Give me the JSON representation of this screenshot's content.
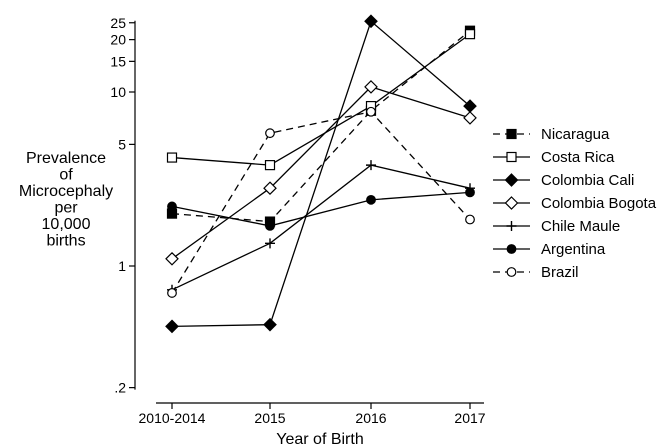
{
  "chart_data": {
    "type": "line",
    "xlabel": "Year of Birth",
    "ylabel_lines": [
      "Prevalence",
      "of",
      "Microcephaly",
      "per",
      "10,000",
      "births"
    ],
    "y_scale": "log",
    "ylim": [
      0.2,
      25
    ],
    "y_ticks": [
      {
        "value": 0.2,
        "label": ".2"
      },
      {
        "value": 1,
        "label": "1"
      },
      {
        "value": 5,
        "label": "5"
      },
      {
        "value": 10,
        "label": "10"
      },
      {
        "value": 15,
        "label": "15"
      },
      {
        "value": 20,
        "label": "20"
      },
      {
        "value": 25,
        "label": "25"
      }
    ],
    "categories": [
      "2010-2014",
      "2015",
      "2016",
      "2017"
    ],
    "legend_position": "right",
    "series": [
      {
        "name": "Nicaragua",
        "values": [
          2.0,
          1.8,
          7.8,
          22.5
        ],
        "marker": "square-filled",
        "dash": "dashed"
      },
      {
        "name": "Costa Rica",
        "values": [
          4.2,
          3.8,
          8.3,
          21.5
        ],
        "marker": "square-open",
        "dash": "solid"
      },
      {
        "name": "Colombia Cali",
        "values": [
          0.45,
          0.46,
          25.5,
          8.3
        ],
        "marker": "diamond-filled",
        "dash": "solid"
      },
      {
        "name": "Colombia Bogota",
        "values": [
          1.1,
          2.8,
          10.7,
          7.1
        ],
        "marker": "diamond-open",
        "dash": "solid"
      },
      {
        "name": "Chile Maule",
        "values": [
          0.73,
          1.35,
          3.8,
          2.8
        ],
        "marker": "plus",
        "dash": "solid"
      },
      {
        "name": "Argentina",
        "values": [
          2.2,
          1.7,
          2.4,
          2.65
        ],
        "marker": "circle-filled",
        "dash": "solid"
      },
      {
        "name": "Brazil",
        "values": [
          0.7,
          5.8,
          7.7,
          1.85
        ],
        "marker": "circle-open",
        "dash": "dashed"
      }
    ]
  }
}
